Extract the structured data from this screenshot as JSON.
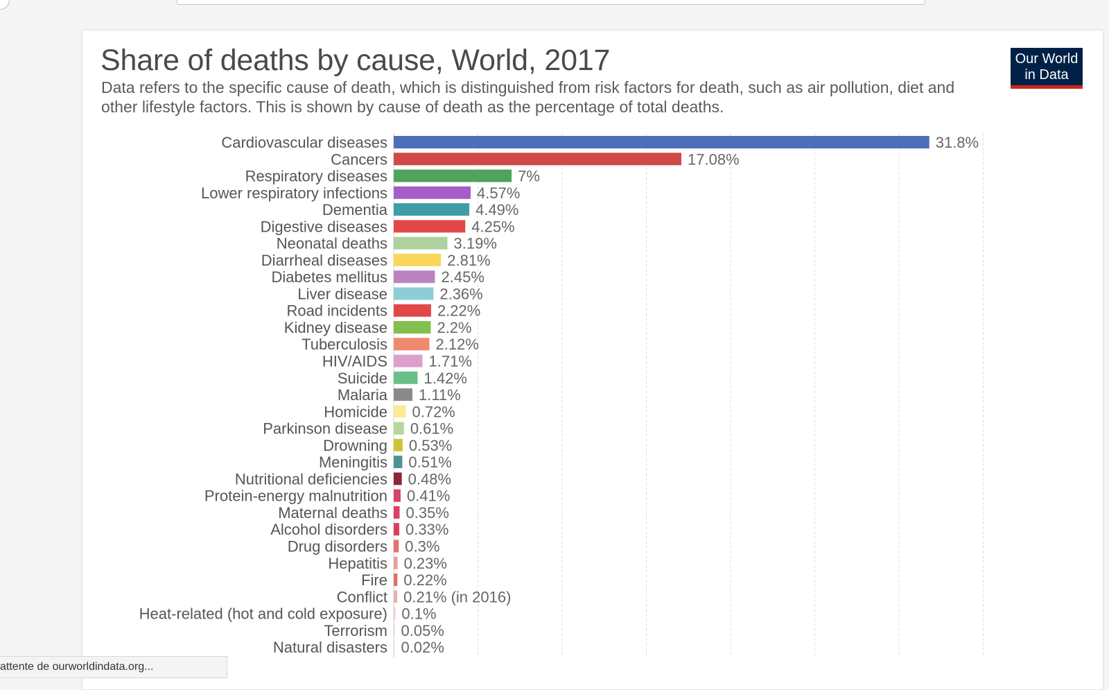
{
  "page": {
    "title": "Share of deaths by cause, World, 2017",
    "subtitle": "Data refers to the specific cause of death, which is distinguished from risk factors for death, such as air pollution, diet and other lifestyle factors. This is shown by cause of death as the percentage of total deaths.",
    "logo_text": "Our World in Data",
    "status_text": "attente de ourworldindata.org..."
  },
  "chart_data": {
    "type": "bar",
    "orientation": "horizontal",
    "title": "Share of deaths by cause, World, 2017",
    "grid": true,
    "xlim": [
      0,
      35
    ],
    "categories": [
      "Cardiovascular diseases",
      "Cancers",
      "Respiratory diseases",
      "Lower respiratory infections",
      "Dementia",
      "Digestive diseases",
      "Neonatal deaths",
      "Diarrheal diseases",
      "Diabetes mellitus",
      "Liver disease",
      "Road incidents",
      "Kidney disease",
      "Tuberculosis",
      "HIV/AIDS",
      "Suicide",
      "Malaria",
      "Homicide",
      "Parkinson disease",
      "Drowning",
      "Meningitis",
      "Nutritional deficiencies",
      "Protein-energy malnutrition",
      "Maternal deaths",
      "Alcohol disorders",
      "Drug disorders",
      "Hepatitis",
      "Fire",
      "Conflict",
      "Heat-related (hot and cold exposure)",
      "Terrorism",
      "Natural disasters"
    ],
    "values": [
      31.8,
      17.08,
      7,
      4.57,
      4.49,
      4.25,
      3.19,
      2.81,
      2.45,
      2.36,
      2.22,
      2.2,
      2.12,
      1.71,
      1.42,
      1.11,
      0.72,
      0.61,
      0.53,
      0.51,
      0.48,
      0.41,
      0.35,
      0.33,
      0.3,
      0.23,
      0.22,
      0.21,
      0.1,
      0.05,
      0.02
    ],
    "labels": [
      "31.8%",
      "17.08%",
      "7%",
      "4.57%",
      "4.49%",
      "4.25%",
      "3.19%",
      "2.81%",
      "2.45%",
      "2.36%",
      "2.22%",
      "2.2%",
      "2.12%",
      "1.71%",
      "1.42%",
      "1.11%",
      "0.72%",
      "0.61%",
      "0.53%",
      "0.51%",
      "0.48%",
      "0.41%",
      "0.35%",
      "0.33%",
      "0.3%",
      "0.23%",
      "0.22%",
      "0.21% (in 2016)",
      "0.1%",
      "0.05%",
      "0.02%"
    ],
    "colors": [
      "#4c6fb8",
      "#d14a4a",
      "#4ea45a",
      "#a45ec6",
      "#3f9ea5",
      "#e24848",
      "#aed19d",
      "#fad75a",
      "#bb84c1",
      "#8ccdd6",
      "#e04848",
      "#82bf4e",
      "#f0896e",
      "#dd9fcc",
      "#6abf88",
      "#8a8a8a",
      "#faeb94",
      "#b6d69d",
      "#cdc437",
      "#4f9293",
      "#8b2634",
      "#d44465",
      "#d94163",
      "#da3e5e",
      "#e57070",
      "#e9a199",
      "#dc7169",
      "#e2b2b2",
      "#f5c9c9",
      "#ebd2d2",
      "#ecdede"
    ]
  }
}
